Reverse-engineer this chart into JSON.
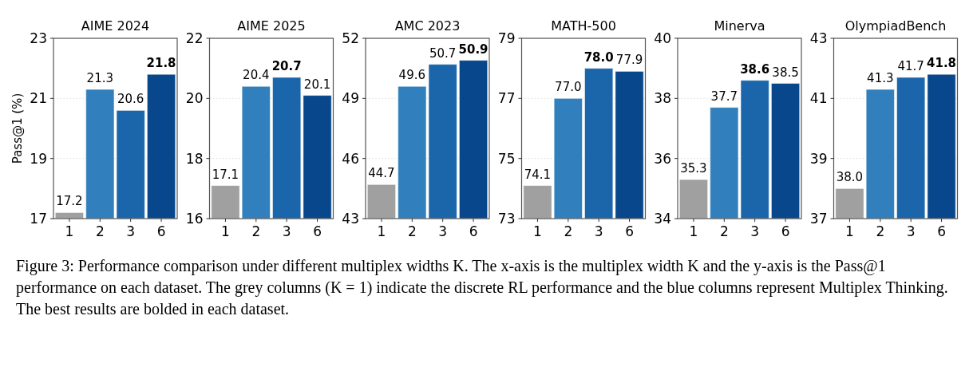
{
  "chart_data": [
    {
      "type": "bar",
      "title": "AIME 2024",
      "ylabel": "Pass@1 (%)",
      "categories": [
        "1",
        "2",
        "3",
        "6"
      ],
      "values": [
        17.2,
        21.3,
        20.6,
        21.8
      ],
      "colors": [
        "#a0a0a0",
        "#3180bd",
        "#1b65ab",
        "#08478b"
      ],
      "ylim": [
        17,
        23
      ],
      "yticks": [
        17,
        19,
        21,
        23
      ],
      "grid": "y",
      "data_labels": true,
      "annotations": [
        "Figure 3: Performance comparison under different multiplex widths K. The x-axis is the multiplex width K and the y-axis is the Pass@1 performance on each dataset. The grey columns (K = 1) indicate the discrete RL performance and the blue columns represent Multiplex Thinking. The best results are bolded in each dataset."
      ]
    },
    {
      "type": "bar",
      "title": "AIME 2025",
      "categories": [
        "1",
        "2",
        "3",
        "6"
      ],
      "values": [
        17.1,
        20.4,
        20.7,
        20.1
      ],
      "colors": [
        "#a0a0a0",
        "#3180bd",
        "#1b65ab",
        "#08478b"
      ],
      "ylim": [
        16,
        22
      ],
      "yticks": [
        16,
        18,
        20,
        22
      ],
      "grid": "y",
      "data_labels": true
    },
    {
      "type": "bar",
      "title": "AMC 2023",
      "categories": [
        "1",
        "2",
        "3",
        "6"
      ],
      "values": [
        44.7,
        49.6,
        50.7,
        50.9
      ],
      "colors": [
        "#a0a0a0",
        "#3180bd",
        "#1b65ab",
        "#08478b"
      ],
      "ylim": [
        43,
        52
      ],
      "yticks": [
        43,
        46,
        49,
        52
      ],
      "grid": "y",
      "data_labels": true
    },
    {
      "type": "bar",
      "title": "MATH-500",
      "categories": [
        "1",
        "2",
        "3",
        "6"
      ],
      "values": [
        74.1,
        77.0,
        78.0,
        77.9
      ],
      "value_labels": [
        "74.1",
        "77.0",
        "78.0",
        "77.9"
      ],
      "colors": [
        "#a0a0a0",
        "#3180bd",
        "#1b65ab",
        "#08478b"
      ],
      "ylim": [
        73,
        79
      ],
      "yticks": [
        73,
        75,
        77,
        79
      ],
      "grid": "y"
    },
    {
      "type": "bar",
      "title": "Minerva",
      "categories": [
        "1",
        "2",
        "3",
        "6"
      ],
      "values": [
        35.3,
        37.7,
        38.6,
        38.5
      ],
      "colors": [
        "#a0a0a0",
        "#3180bd",
        "#1b65ab",
        "#08478b"
      ],
      "ylim": [
        34,
        40
      ],
      "yticks": [
        34,
        36,
        38,
        40
      ],
      "grid": "y",
      "data_labels": true
    },
    {
      "type": "bar",
      "title": "OlympiadBench",
      "categories": [
        "1",
        "2",
        "3",
        "6"
      ],
      "values": [
        38.0,
        41.3,
        41.7,
        41.8
      ],
      "value_labels": [
        "38.0",
        "41.3",
        "41.7",
        "41.8"
      ],
      "colors": [
        "#a0a0a0",
        "#3180bd",
        "#1b65ab",
        "#08478b"
      ],
      "ylim": [
        37,
        43
      ],
      "yticks": [
        37,
        39,
        41,
        43
      ],
      "grid": "y"
    }
  ]
}
